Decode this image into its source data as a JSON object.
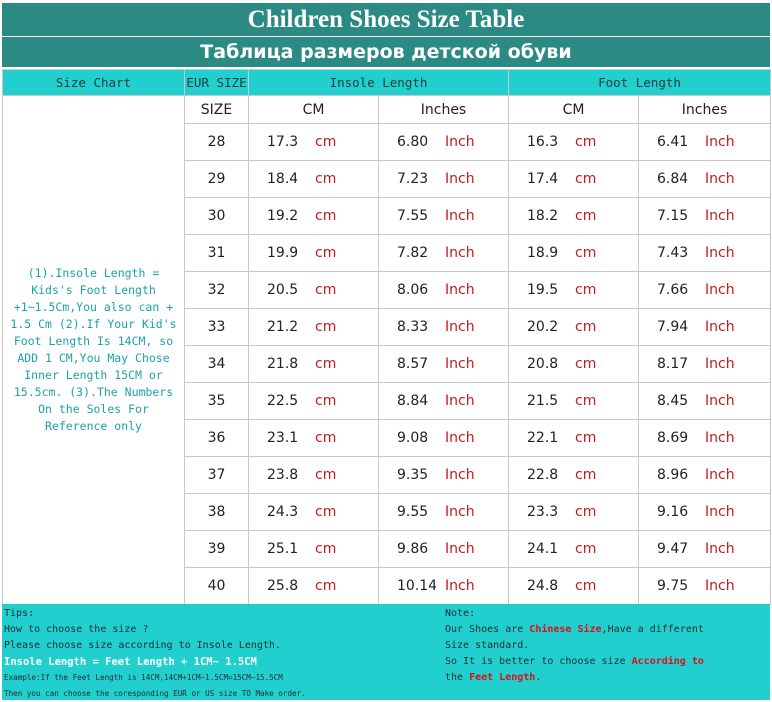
{
  "title": "Children Shoes Size Table",
  "subtitle": "Таблица размеров детской обуви",
  "header": {
    "size_chart": "Size Chart",
    "eur_size": "EUR SIZE",
    "insole_length": "Insole Length",
    "foot_length": "Foot Length"
  },
  "subheader": {
    "size": "SIZE",
    "cm1": "CM",
    "inches1": "Inches",
    "cm2": "CM",
    "inches2": "Inches"
  },
  "units": {
    "cm": "cm",
    "inch": "Inch"
  },
  "side_note": "(1).Insole Length = Kids's Foot Length +1~1.5Cm,You also can + 1.5 Cm (2).If Your Kid's Foot Length Is 14CM,  so ADD 1 CM,You May Chose Inner Length 15CM or 15.5cm. (3).The Numbers On the Soles For Reference only",
  "rows": [
    {
      "size": "28",
      "insole_cm": "17.3",
      "insole_in": "6.80",
      "foot_cm": "16.3",
      "foot_in": "6.41"
    },
    {
      "size": "29",
      "insole_cm": "18.4",
      "insole_in": "7.23",
      "foot_cm": "17.4",
      "foot_in": "6.84"
    },
    {
      "size": "30",
      "insole_cm": "19.2",
      "insole_in": "7.55",
      "foot_cm": "18.2",
      "foot_in": "7.15"
    },
    {
      "size": "31",
      "insole_cm": "19.9",
      "insole_in": "7.82",
      "foot_cm": "18.9",
      "foot_in": "7.43"
    },
    {
      "size": "32",
      "insole_cm": "20.5",
      "insole_in": "8.06",
      "foot_cm": "19.5",
      "foot_in": "7.66"
    },
    {
      "size": "33",
      "insole_cm": "21.2",
      "insole_in": "8.33",
      "foot_cm": "20.2",
      "foot_in": "7.94"
    },
    {
      "size": "34",
      "insole_cm": "21.8",
      "insole_in": "8.57",
      "foot_cm": "20.8",
      "foot_in": "8.17"
    },
    {
      "size": "35",
      "insole_cm": "22.5",
      "insole_in": "8.84",
      "foot_cm": "21.5",
      "foot_in": "8.45"
    },
    {
      "size": "36",
      "insole_cm": "23.1",
      "insole_in": "9.08",
      "foot_cm": "22.1",
      "foot_in": "8.69"
    },
    {
      "size": "37",
      "insole_cm": "23.8",
      "insole_in": "9.35",
      "foot_cm": "22.8",
      "foot_in": "8.96"
    },
    {
      "size": "38",
      "insole_cm": "24.3",
      "insole_in": "9.55",
      "foot_cm": "23.3",
      "foot_in": "9.16"
    },
    {
      "size": "39",
      "insole_cm": "25.1",
      "insole_in": "9.86",
      "foot_cm": "24.1",
      "foot_in": "9.47"
    },
    {
      "size": "40",
      "insole_cm": "25.8",
      "insole_in": "10.14",
      "foot_cm": "24.8",
      "foot_in": "9.75"
    }
  ],
  "tips": {
    "line1": "Tips:",
    "line2": "How to choose the size ?",
    "line3": "Please choose size according to Insole Length.",
    "line4": "Insole Length = Feet Length + 1CM~ 1.5CM",
    "line5": "Example:If the Feet Length is 14CM,14CM+1CM~1.5CM=15CM~15.5CM",
    "line6": "Then you can choose the coresponding EUR or US size TO Make order."
  },
  "note": {
    "line1": "Note:",
    "line2_pre": "Our Shoes are ",
    "line2_hl": "Chinese Size",
    "line2_post": ",Have a different",
    "line3": "Size standard.",
    "line4_pre": "So It is better to choose size ",
    "line4_hl": "According to",
    "line5_pre": "the ",
    "line5_hl": "Feet Length",
    "line5_post": "."
  },
  "colors": {
    "title_bg": "#2b8a83",
    "header_bg": "#22cfcf",
    "unit_red": "#c41a1a",
    "note_teal": "#1ba3a8"
  }
}
